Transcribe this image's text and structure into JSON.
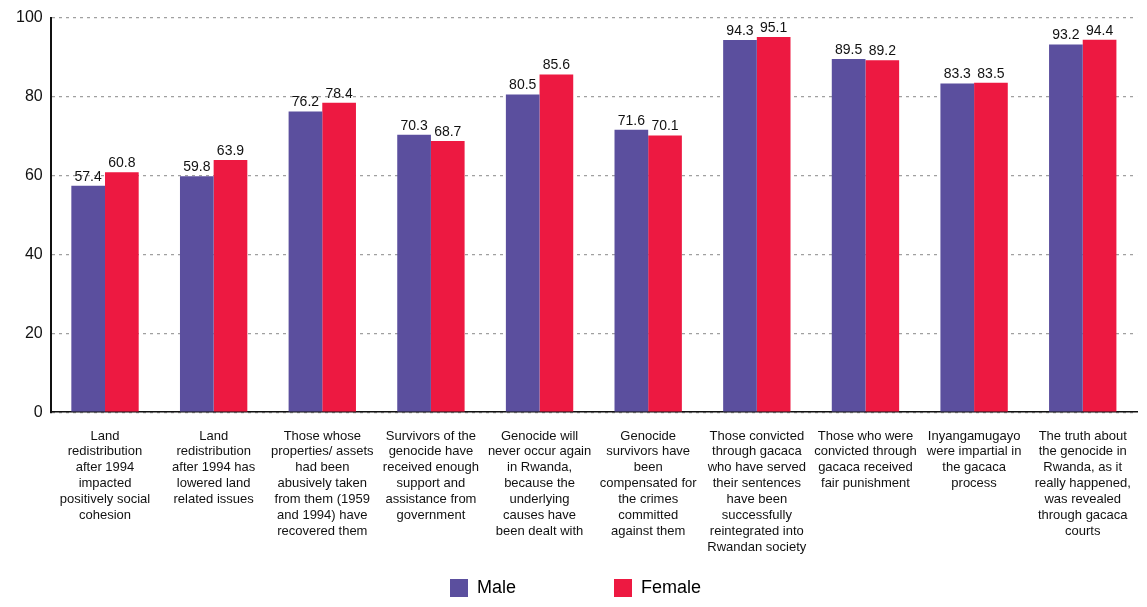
{
  "chart_data": {
    "type": "bar",
    "categories": [
      "Land redistribution after 1994 impacted positively social cohesion",
      "Land redistribution after 1994 has lowered land related issues",
      "Those whose properties/ assets had been abusively taken from them (1959 and 1994) have recovered them",
      "Survivors of the genocide have received enough support and assistance from government",
      "Genocide will never occur again in Rwanda, because the underlying causes have been dealt with",
      "Genocide survivors have been compensated for the crimes committed against them",
      "Those convicted through gacaca who have served their sentences have been successfully reintegrated into Rwandan society",
      "Those who were convicted through gacaca received fair punishment",
      "Inyangamugayo were impartial in the gacaca process",
      "The truth about the genocide in Rwanda, as it really happened, was revealed through gacaca courts"
    ],
    "series": [
      {
        "name": "Male",
        "color": "#5b4f9e",
        "values": [
          57.4,
          59.8,
          76.2,
          70.3,
          80.5,
          71.6,
          94.3,
          89.5,
          83.3,
          93.2
        ]
      },
      {
        "name": "Female",
        "color": "#ed1941",
        "values": [
          60.8,
          63.9,
          78.4,
          68.7,
          85.6,
          70.1,
          95.1,
          89.2,
          83.5,
          94.4
        ]
      }
    ],
    "ylim": [
      0,
      100
    ],
    "yticks": [
      0,
      20,
      40,
      60,
      80,
      100
    ],
    "grid": "y",
    "legend": "bottom",
    "data_labels": true
  }
}
